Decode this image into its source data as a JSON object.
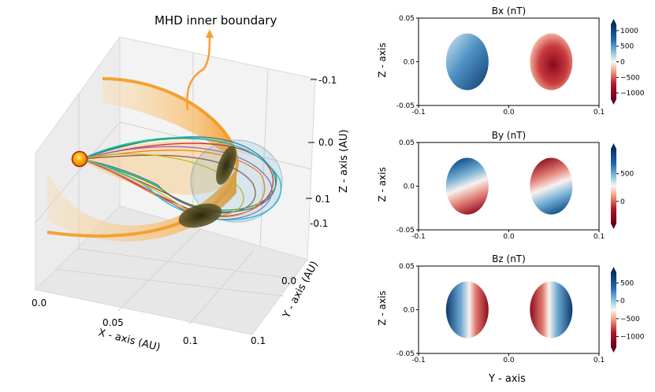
{
  "figure": {
    "annotation": "MHD inner boundary",
    "bottom_xlabel": "Y - axis"
  },
  "chart_data": [
    {
      "type": "3d-field-lines",
      "annotation": "MHD inner boundary",
      "xlabel": "X - axis (AU)",
      "ylabel": "Y - axis (AU)",
      "zlabel": "Z - axis (AU)",
      "x_ticks": [
        "0.0",
        "0.05",
        "0.1"
      ],
      "y_ticks": [
        "-0.1",
        "0.0",
        "0.1"
      ],
      "z_ticks": [
        "-0.1",
        "0.0",
        "0.1"
      ],
      "line_colors": [
        "#1f77b4",
        "#ff7f0e",
        "#2ca02c",
        "#d62728",
        "#9467bd",
        "#8c564b",
        "#17becf"
      ],
      "sun_color": "#f5a300",
      "boundary_color": "#f6a623"
    },
    {
      "type": "heatmap",
      "title": "Bx (nT)",
      "xlabel": "",
      "ylabel": "Z - axis",
      "xlim": [
        -0.1,
        0.1
      ],
      "ylim": [
        -0.05,
        0.05
      ],
      "x_ticks": [
        "-0.1",
        "0.0",
        "0.1"
      ],
      "y_ticks": [
        "0.05",
        "0.0",
        "-0.05"
      ],
      "colorbar": {
        "min": -1200,
        "max": 1200,
        "ticks": [
          1000,
          500,
          0,
          -500,
          -1000
        ],
        "tick_labels": [
          "1000",
          "500",
          "0",
          "−500",
          "−1000"
        ]
      },
      "footprints": [
        {
          "center_y": -0.046,
          "center_z": 0.0,
          "pattern": "positive-bx",
          "peak": 1100
        },
        {
          "center_y": 0.047,
          "center_z": 0.0,
          "pattern": "negative-bx",
          "peak": -1100
        }
      ]
    },
    {
      "type": "heatmap",
      "title": "By (nT)",
      "xlabel": "",
      "ylabel": "Z - axis",
      "xlim": [
        -0.1,
        0.1
      ],
      "ylim": [
        -0.05,
        0.05
      ],
      "x_ticks": [
        "-0.1",
        "0.0",
        "0.1"
      ],
      "y_ticks": [
        "0.05",
        "0.0",
        "-0.05"
      ],
      "colorbar": {
        "min": -400,
        "max": 950,
        "ticks": [
          500,
          0
        ],
        "tick_labels": [
          "500",
          "0"
        ]
      },
      "footprints": [
        {
          "center_y": -0.046,
          "center_z": 0.0,
          "pattern": "blue-top-red-bottom"
        },
        {
          "center_y": 0.047,
          "center_z": 0.0,
          "pattern": "red-top-blue-bottom"
        }
      ]
    },
    {
      "type": "heatmap",
      "title": "Bz (nT)",
      "xlabel": "Y - axis",
      "ylabel": "Z - axis",
      "xlim": [
        -0.1,
        0.1
      ],
      "ylim": [
        -0.05,
        0.05
      ],
      "x_ticks": [
        "-0.1",
        "0.0",
        "0.1"
      ],
      "y_ticks": [
        "0.05",
        "0.0",
        "-0.05"
      ],
      "colorbar": {
        "min": -1300,
        "max": 800,
        "ticks": [
          500,
          0,
          -500,
          -1000
        ],
        "tick_labels": [
          "500",
          "0",
          "−500",
          "−1000"
        ]
      },
      "footprints": [
        {
          "center_y": -0.046,
          "center_z": 0.0,
          "pattern": "blue-red-split"
        },
        {
          "center_y": 0.047,
          "center_z": 0.0,
          "pattern": "red-blue-split"
        }
      ]
    }
  ]
}
